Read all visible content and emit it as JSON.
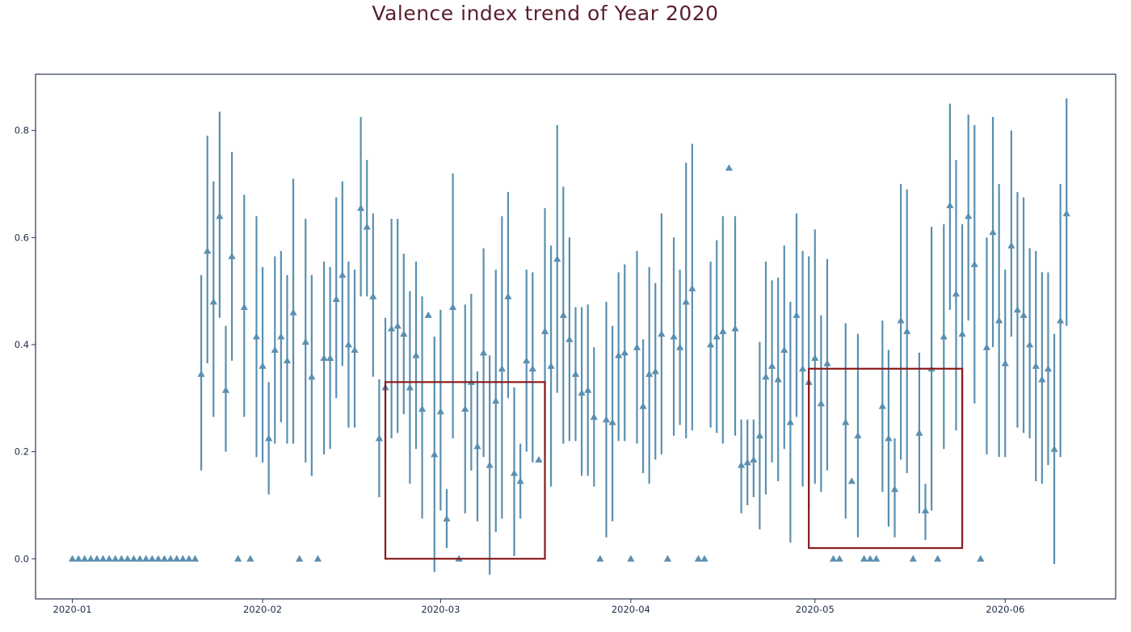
{
  "chart_data": {
    "type": "scatter",
    "title": "Valence index trend of Year 2020",
    "xlabel": "",
    "ylabel": "",
    "xlim": [
      "2019-12-26",
      "2020-06-19"
    ],
    "ylim": [
      -0.075,
      0.905
    ],
    "x_ticks": [
      "2020-01",
      "2020-02",
      "2020-03",
      "2020-04",
      "2020-05",
      "2020-06"
    ],
    "y_ticks": [
      "0.0",
      "0.2",
      "0.4",
      "0.6",
      "0.8"
    ],
    "grid": false,
    "legend": "none",
    "colors": {
      "series": "#5a8fb0",
      "highlight": "#8b1a1a",
      "axes": "#2a3550"
    },
    "series": [
      {
        "marker": "triangle",
        "error_bars": true,
        "points": [
          {
            "x": "2020-01-01",
            "y": 0.0
          },
          {
            "x": "2020-01-02",
            "y": 0.0
          },
          {
            "x": "2020-01-03",
            "y": 0.0
          },
          {
            "x": "2020-01-04",
            "y": 0.0
          },
          {
            "x": "2020-01-05",
            "y": 0.0
          },
          {
            "x": "2020-01-06",
            "y": 0.0
          },
          {
            "x": "2020-01-07",
            "y": 0.0
          },
          {
            "x": "2020-01-08",
            "y": 0.0
          },
          {
            "x": "2020-01-09",
            "y": 0.0
          },
          {
            "x": "2020-01-10",
            "y": 0.0
          },
          {
            "x": "2020-01-11",
            "y": 0.0
          },
          {
            "x": "2020-01-12",
            "y": 0.0
          },
          {
            "x": "2020-01-13",
            "y": 0.0
          },
          {
            "x": "2020-01-14",
            "y": 0.0
          },
          {
            "x": "2020-01-15",
            "y": 0.0
          },
          {
            "x": "2020-01-16",
            "y": 0.0
          },
          {
            "x": "2020-01-17",
            "y": 0.0
          },
          {
            "x": "2020-01-18",
            "y": 0.0
          },
          {
            "x": "2020-01-19",
            "y": 0.0
          },
          {
            "x": "2020-01-20",
            "y": 0.0
          },
          {
            "x": "2020-01-21",
            "y": 0.0
          },
          {
            "x": "2020-01-22",
            "y": 0.345,
            "lo": 0.165,
            "hi": 0.53
          },
          {
            "x": "2020-01-23",
            "y": 0.575,
            "lo": 0.365,
            "hi": 0.79
          },
          {
            "x": "2020-01-24",
            "y": 0.48,
            "lo": 0.265,
            "hi": 0.705
          },
          {
            "x": "2020-01-25",
            "y": 0.64,
            "lo": 0.45,
            "hi": 0.835
          },
          {
            "x": "2020-01-26",
            "y": 0.315,
            "lo": 0.2,
            "hi": 0.435
          },
          {
            "x": "2020-01-27",
            "y": 0.565,
            "lo": 0.37,
            "hi": 0.76
          },
          {
            "x": "2020-01-28",
            "y": 0.0
          },
          {
            "x": "2020-01-29",
            "y": 0.47,
            "lo": 0.265,
            "hi": 0.68
          },
          {
            "x": "2020-01-30",
            "y": 0.0
          },
          {
            "x": "2020-01-31",
            "y": 0.415,
            "lo": 0.19,
            "hi": 0.64
          },
          {
            "x": "2020-02-01",
            "y": 0.36,
            "lo": 0.18,
            "hi": 0.545
          },
          {
            "x": "2020-02-02",
            "y": 0.225,
            "lo": 0.12,
            "hi": 0.33
          },
          {
            "x": "2020-02-03",
            "y": 0.39,
            "lo": 0.215,
            "hi": 0.565
          },
          {
            "x": "2020-02-04",
            "y": 0.415,
            "lo": 0.255,
            "hi": 0.575
          },
          {
            "x": "2020-02-05",
            "y": 0.37,
            "lo": 0.215,
            "hi": 0.53
          },
          {
            "x": "2020-02-06",
            "y": 0.46,
            "lo": 0.215,
            "hi": 0.71
          },
          {
            "x": "2020-02-07",
            "y": 0.0
          },
          {
            "x": "2020-02-08",
            "y": 0.405,
            "lo": 0.18,
            "hi": 0.635
          },
          {
            "x": "2020-02-09",
            "y": 0.34,
            "lo": 0.155,
            "hi": 0.53
          },
          {
            "x": "2020-02-10",
            "y": 0.0
          },
          {
            "x": "2020-02-11",
            "y": 0.375,
            "lo": 0.195,
            "hi": 0.555
          },
          {
            "x": "2020-02-12",
            "y": 0.375,
            "lo": 0.205,
            "hi": 0.545
          },
          {
            "x": "2020-02-13",
            "y": 0.485,
            "lo": 0.3,
            "hi": 0.675
          },
          {
            "x": "2020-02-14",
            "y": 0.53,
            "lo": 0.36,
            "hi": 0.705
          },
          {
            "x": "2020-02-15",
            "y": 0.4,
            "lo": 0.245,
            "hi": 0.555
          },
          {
            "x": "2020-02-16",
            "y": 0.39,
            "lo": 0.245,
            "hi": 0.54
          },
          {
            "x": "2020-02-17",
            "y": 0.655,
            "lo": 0.49,
            "hi": 0.825
          },
          {
            "x": "2020-02-18",
            "y": 0.62,
            "lo": 0.49,
            "hi": 0.745
          },
          {
            "x": "2020-02-19",
            "y": 0.49,
            "lo": 0.34,
            "hi": 0.645
          },
          {
            "x": "2020-02-20",
            "y": 0.225,
            "lo": 0.115,
            "hi": 0.335
          },
          {
            "x": "2020-02-21",
            "y": 0.32,
            "lo": 0.19,
            "hi": 0.45
          },
          {
            "x": "2020-02-22",
            "y": 0.43,
            "lo": 0.225,
            "hi": 0.635
          },
          {
            "x": "2020-02-23",
            "y": 0.435,
            "lo": 0.235,
            "hi": 0.635
          },
          {
            "x": "2020-02-24",
            "y": 0.42,
            "lo": 0.27,
            "hi": 0.57
          },
          {
            "x": "2020-02-25",
            "y": 0.32,
            "lo": 0.14,
            "hi": 0.5
          },
          {
            "x": "2020-02-26",
            "y": 0.38,
            "lo": 0.205,
            "hi": 0.555
          },
          {
            "x": "2020-02-27",
            "y": 0.28,
            "lo": 0.075,
            "hi": 0.49
          },
          {
            "x": "2020-02-28",
            "y": 0.455
          },
          {
            "x": "2020-02-29",
            "y": 0.195,
            "lo": -0.025,
            "hi": 0.415
          },
          {
            "x": "2020-03-01",
            "y": 0.275,
            "lo": 0.09,
            "hi": 0.465
          },
          {
            "x": "2020-03-02",
            "y": 0.075,
            "lo": 0.02,
            "hi": 0.13
          },
          {
            "x": "2020-03-03",
            "y": 0.47,
            "lo": 0.225,
            "hi": 0.72
          },
          {
            "x": "2020-03-04",
            "y": 0.0
          },
          {
            "x": "2020-03-05",
            "y": 0.28,
            "lo": 0.085,
            "hi": 0.475
          },
          {
            "x": "2020-03-06",
            "y": 0.33,
            "lo": 0.165,
            "hi": 0.495
          },
          {
            "x": "2020-03-07",
            "y": 0.21,
            "lo": 0.07,
            "hi": 0.35
          },
          {
            "x": "2020-03-08",
            "y": 0.385,
            "lo": 0.19,
            "hi": 0.58
          },
          {
            "x": "2020-03-09",
            "y": 0.175,
            "lo": -0.03,
            "hi": 0.38
          },
          {
            "x": "2020-03-10",
            "y": 0.295,
            "lo": 0.05,
            "hi": 0.54
          },
          {
            "x": "2020-03-11",
            "y": 0.355,
            "lo": 0.075,
            "hi": 0.64
          },
          {
            "x": "2020-03-12",
            "y": 0.49,
            "lo": 0.3,
            "hi": 0.685
          },
          {
            "x": "2020-03-13",
            "y": 0.16,
            "lo": 0.005,
            "hi": 0.32
          },
          {
            "x": "2020-03-14",
            "y": 0.145,
            "lo": 0.075,
            "hi": 0.215
          },
          {
            "x": "2020-03-15",
            "y": 0.37,
            "lo": 0.2,
            "hi": 0.54
          },
          {
            "x": "2020-03-16",
            "y": 0.355,
            "lo": 0.18,
            "hi": 0.535
          },
          {
            "x": "2020-03-17",
            "y": 0.185
          },
          {
            "x": "2020-03-18",
            "y": 0.425,
            "lo": 0.195,
            "hi": 0.655
          },
          {
            "x": "2020-03-19",
            "y": 0.36,
            "lo": 0.135,
            "hi": 0.585
          },
          {
            "x": "2020-03-20",
            "y": 0.56,
            "lo": 0.31,
            "hi": 0.81
          },
          {
            "x": "2020-03-21",
            "y": 0.455,
            "lo": 0.215,
            "hi": 0.695
          },
          {
            "x": "2020-03-22",
            "y": 0.41,
            "lo": 0.22,
            "hi": 0.6
          },
          {
            "x": "2020-03-23",
            "y": 0.345,
            "lo": 0.22,
            "hi": 0.47
          },
          {
            "x": "2020-03-24",
            "y": 0.31,
            "lo": 0.155,
            "hi": 0.47
          },
          {
            "x": "2020-03-25",
            "y": 0.315,
            "lo": 0.155,
            "hi": 0.475
          },
          {
            "x": "2020-03-26",
            "y": 0.265,
            "lo": 0.135,
            "hi": 0.395
          },
          {
            "x": "2020-03-27",
            "y": 0.0
          },
          {
            "x": "2020-03-28",
            "y": 0.26,
            "lo": 0.04,
            "hi": 0.48
          },
          {
            "x": "2020-03-29",
            "y": 0.255,
            "lo": 0.07,
            "hi": 0.435
          },
          {
            "x": "2020-03-30",
            "y": 0.38,
            "lo": 0.22,
            "hi": 0.535
          },
          {
            "x": "2020-03-31",
            "y": 0.385,
            "lo": 0.22,
            "hi": 0.55
          },
          {
            "x": "2020-04-01",
            "y": 0.0
          },
          {
            "x": "2020-04-02",
            "y": 0.395,
            "lo": 0.215,
            "hi": 0.575
          },
          {
            "x": "2020-04-03",
            "y": 0.285,
            "lo": 0.16,
            "hi": 0.41
          },
          {
            "x": "2020-04-04",
            "y": 0.345,
            "lo": 0.14,
            "hi": 0.545
          },
          {
            "x": "2020-04-05",
            "y": 0.35,
            "lo": 0.185,
            "hi": 0.515
          },
          {
            "x": "2020-04-06",
            "y": 0.42,
            "lo": 0.195,
            "hi": 0.645
          },
          {
            "x": "2020-04-07",
            "y": 0.0
          },
          {
            "x": "2020-04-08",
            "y": 0.415,
            "lo": 0.23,
            "hi": 0.6
          },
          {
            "x": "2020-04-09",
            "y": 0.395,
            "lo": 0.25,
            "hi": 0.54
          },
          {
            "x": "2020-04-10",
            "y": 0.48,
            "lo": 0.225,
            "hi": 0.74
          },
          {
            "x": "2020-04-11",
            "y": 0.505,
            "lo": 0.24,
            "hi": 0.775
          },
          {
            "x": "2020-04-12",
            "y": 0.0
          },
          {
            "x": "2020-04-13",
            "y": 0.0
          },
          {
            "x": "2020-04-14",
            "y": 0.4,
            "lo": 0.245,
            "hi": 0.555
          },
          {
            "x": "2020-04-15",
            "y": 0.415,
            "lo": 0.235,
            "hi": 0.595
          },
          {
            "x": "2020-04-16",
            "y": 0.425,
            "lo": 0.215,
            "hi": 0.64
          },
          {
            "x": "2020-04-17",
            "y": 0.73
          },
          {
            "x": "2020-04-18",
            "y": 0.43,
            "lo": 0.23,
            "hi": 0.64
          },
          {
            "x": "2020-04-19",
            "y": 0.175,
            "lo": 0.085,
            "hi": 0.26
          },
          {
            "x": "2020-04-20",
            "y": 0.18,
            "lo": 0.1,
            "hi": 0.26
          },
          {
            "x": "2020-04-21",
            "y": 0.185,
            "lo": 0.115,
            "hi": 0.26
          },
          {
            "x": "2020-04-22",
            "y": 0.23,
            "lo": 0.055,
            "hi": 0.405
          },
          {
            "x": "2020-04-23",
            "y": 0.34,
            "lo": 0.12,
            "hi": 0.555
          },
          {
            "x": "2020-04-24",
            "y": 0.36,
            "lo": 0.18,
            "hi": 0.52
          },
          {
            "x": "2020-04-25",
            "y": 0.335,
            "lo": 0.145,
            "hi": 0.525
          },
          {
            "x": "2020-04-26",
            "y": 0.39,
            "lo": 0.205,
            "hi": 0.585
          },
          {
            "x": "2020-04-27",
            "y": 0.255,
            "lo": 0.03,
            "hi": 0.48
          },
          {
            "x": "2020-04-28",
            "y": 0.455,
            "lo": 0.265,
            "hi": 0.645
          },
          {
            "x": "2020-04-29",
            "y": 0.355,
            "lo": 0.135,
            "hi": 0.575
          },
          {
            "x": "2020-04-30",
            "y": 0.33,
            "lo": 0.095,
            "hi": 0.565
          },
          {
            "x": "2020-05-01",
            "y": 0.375,
            "lo": 0.14,
            "hi": 0.615
          },
          {
            "x": "2020-05-02",
            "y": 0.29,
            "lo": 0.125,
            "hi": 0.455
          },
          {
            "x": "2020-05-03",
            "y": 0.365,
            "lo": 0.165,
            "hi": 0.56
          },
          {
            "x": "2020-05-04",
            "y": 0.0
          },
          {
            "x": "2020-05-05",
            "y": 0.0
          },
          {
            "x": "2020-05-06",
            "y": 0.255,
            "lo": 0.075,
            "hi": 0.44
          },
          {
            "x": "2020-05-07",
            "y": 0.145
          },
          {
            "x": "2020-05-08",
            "y": 0.23,
            "lo": 0.04,
            "hi": 0.42
          },
          {
            "x": "2020-05-09",
            "y": 0.0
          },
          {
            "x": "2020-05-10",
            "y": 0.0
          },
          {
            "x": "2020-05-11",
            "y": 0.0
          },
          {
            "x": "2020-05-12",
            "y": 0.285,
            "lo": 0.125,
            "hi": 0.445
          },
          {
            "x": "2020-05-13",
            "y": 0.225,
            "lo": 0.06,
            "hi": 0.39
          },
          {
            "x": "2020-05-14",
            "y": 0.13,
            "lo": 0.04,
            "hi": 0.225
          },
          {
            "x": "2020-05-15",
            "y": 0.445,
            "lo": 0.185,
            "hi": 0.7
          },
          {
            "x": "2020-05-16",
            "y": 0.425,
            "lo": 0.16,
            "hi": 0.69
          },
          {
            "x": "2020-05-17",
            "y": 0.0
          },
          {
            "x": "2020-05-18",
            "y": 0.235,
            "lo": 0.085,
            "hi": 0.385
          },
          {
            "x": "2020-05-19",
            "y": 0.09,
            "lo": 0.035,
            "hi": 0.14
          },
          {
            "x": "2020-05-20",
            "y": 0.355,
            "lo": 0.09,
            "hi": 0.62
          },
          {
            "x": "2020-05-21",
            "y": 0.0
          },
          {
            "x": "2020-05-22",
            "y": 0.415,
            "lo": 0.205,
            "hi": 0.625
          },
          {
            "x": "2020-05-23",
            "y": 0.66,
            "lo": 0.465,
            "hi": 0.85
          },
          {
            "x": "2020-05-24",
            "y": 0.495,
            "lo": 0.24,
            "hi": 0.745
          },
          {
            "x": "2020-05-25",
            "y": 0.42,
            "lo": 0.22,
            "hi": 0.625
          },
          {
            "x": "2020-05-26",
            "y": 0.64,
            "lo": 0.445,
            "hi": 0.83
          },
          {
            "x": "2020-05-27",
            "y": 0.55,
            "lo": 0.29,
            "hi": 0.81
          },
          {
            "x": "2020-05-28",
            "y": 0.0
          },
          {
            "x": "2020-05-29",
            "y": 0.395,
            "lo": 0.195,
            "hi": 0.6
          },
          {
            "x": "2020-05-30",
            "y": 0.61,
            "lo": 0.395,
            "hi": 0.825
          },
          {
            "x": "2020-05-31",
            "y": 0.445,
            "lo": 0.19,
            "hi": 0.7
          },
          {
            "x": "2020-06-01",
            "y": 0.365,
            "lo": 0.19,
            "hi": 0.54
          },
          {
            "x": "2020-06-02",
            "y": 0.585,
            "lo": 0.415,
            "hi": 0.8
          },
          {
            "x": "2020-06-03",
            "y": 0.465,
            "lo": 0.245,
            "hi": 0.685
          },
          {
            "x": "2020-06-04",
            "y": 0.455,
            "lo": 0.235,
            "hi": 0.675
          },
          {
            "x": "2020-06-05",
            "y": 0.4,
            "lo": 0.225,
            "hi": 0.58
          },
          {
            "x": "2020-06-06",
            "y": 0.36,
            "lo": 0.145,
            "hi": 0.575
          },
          {
            "x": "2020-06-07",
            "y": 0.335,
            "lo": 0.14,
            "hi": 0.535
          },
          {
            "x": "2020-06-08",
            "y": 0.355,
            "lo": 0.175,
            "hi": 0.535
          },
          {
            "x": "2020-06-09",
            "y": 0.205,
            "lo": -0.01,
            "hi": 0.42
          },
          {
            "x": "2020-06-10",
            "y": 0.445,
            "lo": 0.19,
            "hi": 0.7
          },
          {
            "x": "2020-06-11",
            "y": 0.645,
            "lo": 0.435,
            "hi": 0.86
          }
        ]
      }
    ],
    "annotations": [
      {
        "type": "rectangle",
        "x0": "2020-02-21",
        "x1": "2020-03-18",
        "y0": 0.0,
        "y1": 0.33
      },
      {
        "type": "rectangle",
        "x0": "2020-04-30",
        "x1": "2020-05-25",
        "y0": 0.02,
        "y1": 0.355
      }
    ]
  }
}
